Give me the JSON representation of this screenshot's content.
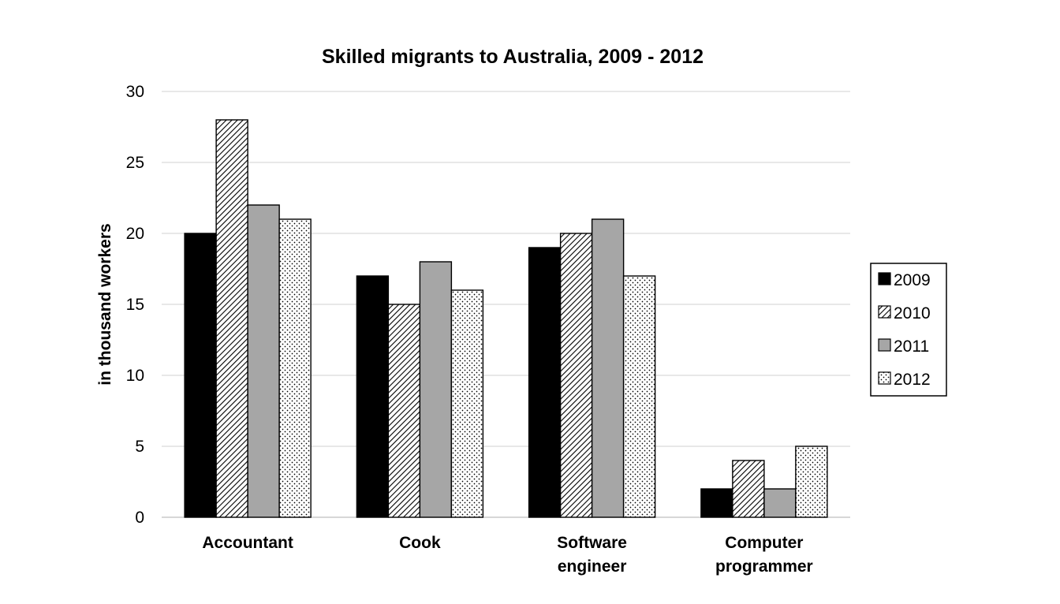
{
  "chart_data": {
    "type": "bar",
    "title": "Skilled migrants to Australia, 2009 - 2012",
    "xlabel": "",
    "ylabel": "in thousand workers",
    "ylim": [
      0,
      30
    ],
    "yticks": [
      0,
      5,
      10,
      15,
      20,
      25,
      30
    ],
    "categories": [
      [
        "Accountant"
      ],
      [
        "Cook"
      ],
      [
        "Software",
        "engineer"
      ],
      [
        "Computer",
        "programmer"
      ]
    ],
    "series": [
      {
        "name": "2009",
        "values": [
          20,
          17,
          19,
          2
        ],
        "pattern": "solid-black"
      },
      {
        "name": "2010",
        "values": [
          28,
          15,
          20,
          4
        ],
        "pattern": "diagonal-hatch"
      },
      {
        "name": "2011",
        "values": [
          22,
          18,
          21,
          2
        ],
        "pattern": "solid-gray"
      },
      {
        "name": "2012",
        "values": [
          21,
          16,
          17,
          5
        ],
        "pattern": "dots"
      }
    ],
    "grid": true,
    "legend_position": "right",
    "colors": {
      "black": "#000000",
      "gray": "#a6a6a6",
      "grid": "#d9d9d9",
      "axis": "#bfbfbf"
    }
  }
}
